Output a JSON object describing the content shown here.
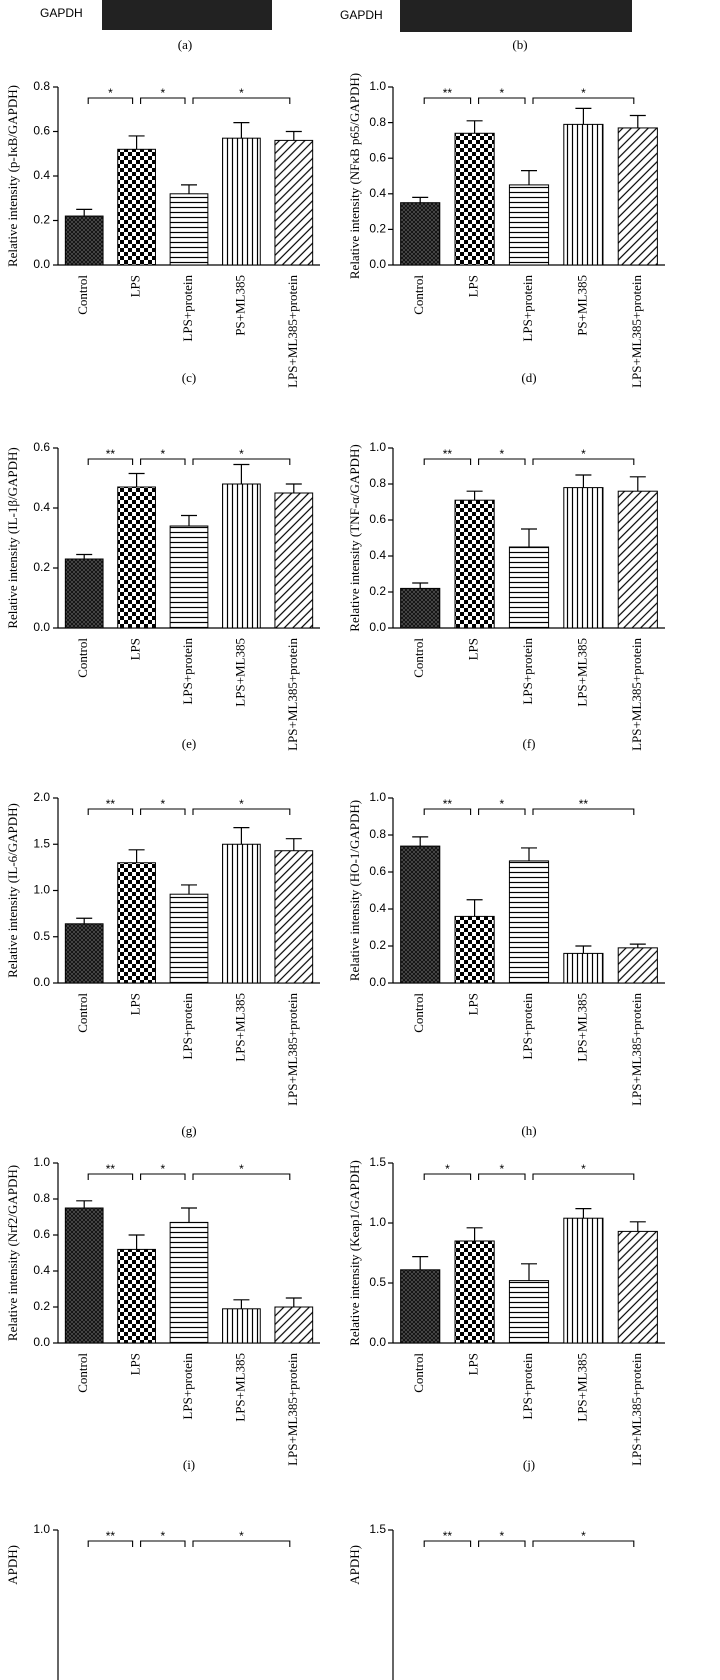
{
  "figure": {
    "blot_labels": [
      "GAPDH",
      "GAPDH"
    ],
    "panel_labels": [
      "(a)",
      "(b)"
    ]
  },
  "chart_data": [
    {
      "type": "bar",
      "panel": "(c)",
      "ylabel": "Relative intensity (p-IκB/GAPDH)",
      "categories": [
        "Control",
        "LPS",
        "LPS+protein",
        "PS+ML385",
        "LPS+ML385+protein"
      ],
      "values": [
        0.22,
        0.52,
        0.32,
        0.57,
        0.56
      ],
      "errors": [
        0.03,
        0.06,
        0.04,
        0.07,
        0.04
      ],
      "ylim": [
        0,
        0.8
      ],
      "yticks": [
        {
          "value": 0,
          "label": "0.0"
        },
        0.2,
        0.4,
        0.6,
        0.8
      ],
      "comparisons": [
        {
          "between": [
            0,
            1
          ],
          "label": "*"
        },
        {
          "between": [
            1,
            2
          ],
          "label": "*"
        },
        {
          "between": [
            2,
            4
          ],
          "label": "*"
        }
      ]
    },
    {
      "type": "bar",
      "panel": "(d)",
      "ylabel": "Relative intensity (NFκB p65/GAPDH)",
      "categories": [
        "Control",
        "LPS",
        "LPS+protein",
        "PS+ML385",
        "LPS+ML385+protein"
      ],
      "values": [
        0.35,
        0.74,
        0.45,
        0.79,
        0.77
      ],
      "errors": [
        0.03,
        0.07,
        0.08,
        0.09,
        0.07
      ],
      "ylim": [
        0,
        1
      ],
      "yticks": [
        {
          "value": 0,
          "label": "0.0"
        },
        0.2,
        0.4,
        0.6,
        0.8,
        {
          "value": 1,
          "label": "1.0"
        }
      ],
      "comparisons": [
        {
          "between": [
            0,
            1
          ],
          "label": "**"
        },
        {
          "between": [
            1,
            2
          ],
          "label": "*"
        },
        {
          "between": [
            2,
            4
          ],
          "label": "*"
        }
      ]
    },
    {
      "type": "bar",
      "panel": "(e)",
      "ylabel": "Relative intensity (IL-1β/GAPDH)",
      "categories": [
        "Control",
        "LPS",
        "LPS+protein",
        "LPS+ML385",
        "LPS+ML385+protein"
      ],
      "values": [
        0.23,
        0.47,
        0.34,
        0.48,
        0.45
      ],
      "errors": [
        0.015,
        0.045,
        0.035,
        0.065,
        0.03
      ],
      "ylim": [
        0,
        0.6
      ],
      "yticks": [
        {
          "value": 0,
          "label": "0.0"
        },
        0.2,
        0.4,
        0.6
      ],
      "comparisons": [
        {
          "between": [
            0,
            1
          ],
          "label": "**"
        },
        {
          "between": [
            1,
            2
          ],
          "label": "*"
        },
        {
          "between": [
            2,
            4
          ],
          "label": "*"
        }
      ]
    },
    {
      "type": "bar",
      "panel": "(f)",
      "ylabel": "Relative intensity (TNF-α/GAPDH)",
      "categories": [
        "Control",
        "LPS",
        "LPS+protein",
        "LPS+ML385",
        "LPS+ML385+protein"
      ],
      "values": [
        0.22,
        0.71,
        0.45,
        0.78,
        0.76
      ],
      "errors": [
        0.03,
        0.05,
        0.1,
        0.07,
        0.08
      ],
      "ylim": [
        0,
        1
      ],
      "yticks": [
        {
          "value": 0,
          "label": "0.0"
        },
        0.2,
        0.4,
        0.6,
        0.8,
        {
          "value": 1,
          "label": "1.0"
        }
      ],
      "comparisons": [
        {
          "between": [
            0,
            1
          ],
          "label": "**"
        },
        {
          "between": [
            1,
            2
          ],
          "label": "*"
        },
        {
          "between": [
            2,
            4
          ],
          "label": "*"
        }
      ]
    },
    {
      "type": "bar",
      "panel": "(g)",
      "ylabel": "Relative intensity (IL-6/GAPDH)",
      "categories": [
        "Control",
        "LPS",
        "LPS+protein",
        "LPS+ML385",
        "LPS+ML385+protein"
      ],
      "values": [
        0.64,
        1.3,
        0.96,
        1.5,
        1.43
      ],
      "errors": [
        0.06,
        0.14,
        0.1,
        0.18,
        0.13
      ],
      "ylim": [
        0,
        2
      ],
      "yticks": [
        {
          "value": 0,
          "label": "0.0"
        },
        0.5,
        {
          "value": 1,
          "label": "1.0"
        },
        1.5,
        {
          "value": 2,
          "label": "2.0"
        }
      ],
      "comparisons": [
        {
          "between": [
            0,
            1
          ],
          "label": "**"
        },
        {
          "between": [
            1,
            2
          ],
          "label": "*"
        },
        {
          "between": [
            2,
            4
          ],
          "label": "*"
        }
      ]
    },
    {
      "type": "bar",
      "panel": "(h)",
      "ylabel": "Relative intensity (HO-1/GAPDH)",
      "categories": [
        "Control",
        "LPS",
        "LPS+protein",
        "LPS+ML385",
        "LPS+ML385+protein"
      ],
      "values": [
        0.74,
        0.36,
        0.66,
        0.16,
        0.19
      ],
      "errors": [
        0.05,
        0.09,
        0.07,
        0.04,
        0.02
      ],
      "ylim": [
        0,
        1
      ],
      "yticks": [
        {
          "value": 0,
          "label": "0.0"
        },
        0.2,
        0.4,
        0.6,
        0.8,
        {
          "value": 1,
          "label": "1.0"
        }
      ],
      "comparisons": [
        {
          "between": [
            0,
            1
          ],
          "label": "**"
        },
        {
          "between": [
            1,
            2
          ],
          "label": "*"
        },
        {
          "between": [
            2,
            4
          ],
          "label": "**"
        }
      ]
    },
    {
      "type": "bar",
      "panel": "(i)",
      "ylabel": "Relative intensity (Nrf2/GAPDH)",
      "categories": [
        "Control",
        "LPS",
        "LPS+protein",
        "LPS+ML385",
        "LPS+ML385+protein"
      ],
      "values": [
        0.75,
        0.52,
        0.67,
        0.19,
        0.2
      ],
      "errors": [
        0.04,
        0.08,
        0.08,
        0.05,
        0.05
      ],
      "ylim": [
        0,
        1
      ],
      "yticks": [
        {
          "value": 0,
          "label": "0.0"
        },
        0.2,
        0.4,
        0.6,
        0.8,
        {
          "value": 1,
          "label": "1.0"
        }
      ],
      "comparisons": [
        {
          "between": [
            0,
            1
          ],
          "label": "**"
        },
        {
          "between": [
            1,
            2
          ],
          "label": "*"
        },
        {
          "between": [
            2,
            4
          ],
          "label": "*"
        }
      ]
    },
    {
      "type": "bar",
      "panel": "(j)",
      "ylabel": "Relative intensity (Keap1/GAPDH)",
      "categories": [
        "Control",
        "LPS",
        "LPS+protein",
        "LPS+ML385",
        "LPS+ML385+protein"
      ],
      "values": [
        0.61,
        0.85,
        0.52,
        1.04,
        0.93
      ],
      "errors": [
        0.11,
        0.11,
        0.14,
        0.08,
        0.08
      ],
      "ylim": [
        0,
        1.5
      ],
      "yticks": [
        {
          "value": 0,
          "label": "0.0"
        },
        0.5,
        {
          "value": 1,
          "label": "1.0"
        },
        1.5
      ],
      "comparisons": [
        {
          "between": [
            0,
            1
          ],
          "label": "*"
        },
        {
          "between": [
            1,
            2
          ],
          "label": "*"
        },
        {
          "between": [
            2,
            4
          ],
          "label": "*"
        }
      ]
    },
    {
      "type": "bar",
      "ylabel": "APDH)",
      "ylim": [
        0,
        1
      ],
      "yticks": [
        {
          "value": 1,
          "label": "1.0"
        }
      ],
      "comparisons": [
        {
          "between": [
            0,
            1
          ],
          "label": "**"
        },
        {
          "between": [
            1,
            2
          ],
          "label": "*"
        },
        {
          "between": [
            2,
            4
          ],
          "label": "*"
        }
      ]
    },
    {
      "type": "bar",
      "ylabel": "APDH)",
      "ylim": [
        0,
        1.5
      ],
      "yticks": [
        1.5
      ],
      "comparisons": [
        {
          "between": [
            0,
            1
          ],
          "label": "**"
        },
        {
          "between": [
            1,
            2
          ],
          "label": "*"
        },
        {
          "between": [
            2,
            4
          ],
          "label": "*"
        }
      ]
    }
  ]
}
